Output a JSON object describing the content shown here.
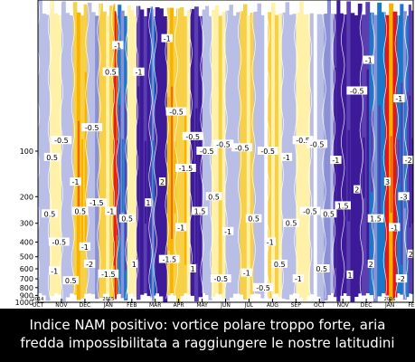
{
  "chart_data": {
    "type": "heatmap",
    "title": "",
    "xlabel": "",
    "ylabel": "",
    "x_axis": {
      "ticks": [
        {
          "label": "OCT",
          "year": "2014"
        },
        {
          "label": "NOV",
          "year": ""
        },
        {
          "label": "DEC",
          "year": ""
        },
        {
          "label": "JAN",
          "year": "2015"
        },
        {
          "label": "FEB",
          "year": ""
        },
        {
          "label": "MAR",
          "year": ""
        },
        {
          "label": "APR",
          "year": ""
        },
        {
          "label": "MAY",
          "year": ""
        },
        {
          "label": "JUN",
          "year": ""
        },
        {
          "label": "JUL",
          "year": ""
        },
        {
          "label": "AUG",
          "year": ""
        },
        {
          "label": "SEP",
          "year": ""
        },
        {
          "label": "OCT",
          "year": ""
        },
        {
          "label": "NOV",
          "year": ""
        },
        {
          "label": "DEC",
          "year": ""
        },
        {
          "label": "JAN",
          "year": "2016"
        },
        {
          "label": "FEB",
          "year": ""
        }
      ]
    },
    "y_axis": {
      "scale": "log",
      "inverted": true,
      "range": [
        10,
        1000
      ],
      "tick_labels": [
        "100",
        "200",
        "300",
        "400",
        "500",
        "600",
        "700",
        "800",
        "900",
        "1000"
      ]
    },
    "contour_levels": [
      -3,
      -2,
      -1.5,
      -1,
      -0.5,
      0.5,
      1,
      1.5,
      2,
      3
    ],
    "colors": {
      "neg_light": "#fff1a8",
      "neg_mid": "#f8d048",
      "neg_strong": "#f7b300",
      "neg_deep": "#ef6a0f",
      "neg_extreme": "#e3161b",
      "pos_light": "#b9bee6",
      "pos_mid": "#8a8fd6",
      "pos_blue": "#1b78c9",
      "pos_strong": "#5b3eb0",
      "pos_extreme": "#3d1a98"
    },
    "bands": [
      {
        "start": 0.0,
        "end": 0.5,
        "value": 0.5
      },
      {
        "start": 0.5,
        "end": 1.0,
        "value": -0.6
      },
      {
        "start": 1.0,
        "end": 1.5,
        "value": 0.4
      },
      {
        "start": 1.5,
        "end": 2.1,
        "value": -1.2
      },
      {
        "start": 2.1,
        "end": 2.6,
        "value": 0.7
      },
      {
        "start": 2.6,
        "end": 3.2,
        "value": -0.8
      },
      {
        "start": 3.2,
        "end": 3.4,
        "value": -2.6
      },
      {
        "start": 3.4,
        "end": 3.8,
        "value": 1.5
      },
      {
        "start": 3.8,
        "end": 4.2,
        "value": -0.6
      },
      {
        "start": 4.2,
        "end": 4.8,
        "value": 2.8
      },
      {
        "start": 4.8,
        "end": 5.0,
        "value": 1.4
      },
      {
        "start": 5.0,
        "end": 5.5,
        "value": 3.0
      },
      {
        "start": 5.5,
        "end": 5.9,
        "value": -1.5
      },
      {
        "start": 5.9,
        "end": 6.5,
        "value": -1.1
      },
      {
        "start": 6.5,
        "end": 7.0,
        "value": 2.6
      },
      {
        "start": 7.0,
        "end": 7.4,
        "value": 0.6
      },
      {
        "start": 7.4,
        "end": 8.0,
        "value": -0.7
      },
      {
        "start": 8.0,
        "end": 8.6,
        "value": 0.5
      },
      {
        "start": 8.6,
        "end": 9.2,
        "value": -0.9
      },
      {
        "start": 9.2,
        "end": 9.8,
        "value": 0.4
      },
      {
        "start": 9.8,
        "end": 10.4,
        "value": -0.7
      },
      {
        "start": 10.4,
        "end": 11.0,
        "value": 0.6
      },
      {
        "start": 11.0,
        "end": 11.6,
        "value": -0.6
      },
      {
        "start": 11.6,
        "end": 12.2,
        "value": 0.4
      },
      {
        "start": 12.2,
        "end": 12.6,
        "value": 0.8
      },
      {
        "start": 12.6,
        "end": 13.0,
        "value": 2.7
      },
      {
        "start": 13.0,
        "end": 13.8,
        "value": 3.0
      },
      {
        "start": 13.8,
        "end": 14.3,
        "value": 2.4
      },
      {
        "start": 14.3,
        "end": 14.8,
        "value": 1.3
      },
      {
        "start": 14.8,
        "end": 15.3,
        "value": -2.8
      },
      {
        "start": 15.3,
        "end": 15.7,
        "value": 1.6
      },
      {
        "start": 15.7,
        "end": 16.0,
        "value": 2.2
      }
    ],
    "contour_labels": [
      {
        "t": 3.4,
        "p": 20,
        "text": "-1"
      },
      {
        "t": 2.3,
        "p": 70,
        "text": "-0.5"
      },
      {
        "t": 1.0,
        "p": 85,
        "text": "-0.5"
      },
      {
        "t": 3.1,
        "p": 30,
        "text": "0.5"
      },
      {
        "t": 4.3,
        "p": 30,
        "text": "-1"
      },
      {
        "t": 5.5,
        "p": 18,
        "text": "-1"
      },
      {
        "t": 5.9,
        "p": 55,
        "text": "-0.5"
      },
      {
        "t": 6.3,
        "p": 130,
        "text": "-1.5"
      },
      {
        "t": 6.6,
        "p": 80,
        "text": "-0.5"
      },
      {
        "t": 7.2,
        "p": 100,
        "text": "-0.5"
      },
      {
        "t": 7.9,
        "p": 90,
        "text": "-0.5"
      },
      {
        "t": 8.7,
        "p": 95,
        "text": "-0.5"
      },
      {
        "t": 9.8,
        "p": 100,
        "text": "-0.5"
      },
      {
        "t": 10.6,
        "p": 110,
        "text": "-1"
      },
      {
        "t": 11.3,
        "p": 85,
        "text": "-0.5"
      },
      {
        "t": 11.9,
        "p": 90,
        "text": "-0.5"
      },
      {
        "t": 12.7,
        "p": 115,
        "text": "-1"
      },
      {
        "t": 13.6,
        "p": 40,
        "text": "-0.5"
      },
      {
        "t": 14.1,
        "p": 25,
        "text": "-1"
      },
      {
        "t": 15.4,
        "p": 45,
        "text": "-1"
      },
      {
        "t": 15.8,
        "p": 115,
        "text": "-2"
      },
      {
        "t": 15.6,
        "p": 200,
        "text": "-3"
      },
      {
        "t": 15.2,
        "p": 320,
        "text": "-1"
      },
      {
        "t": 0.6,
        "p": 110,
        "text": "0.5"
      },
      {
        "t": 0.5,
        "p": 260,
        "text": "0.5"
      },
      {
        "t": 0.9,
        "p": 400,
        "text": "-0.5"
      },
      {
        "t": 1.6,
        "p": 160,
        "text": "-1"
      },
      {
        "t": 1.8,
        "p": 250,
        "text": "0.5"
      },
      {
        "t": 2.0,
        "p": 430,
        "text": "-1"
      },
      {
        "t": 2.5,
        "p": 220,
        "text": "-1.5"
      },
      {
        "t": 3.1,
        "p": 250,
        "text": "-1"
      },
      {
        "t": 3.8,
        "p": 280,
        "text": "0.5"
      },
      {
        "t": 4.7,
        "p": 220,
        "text": "1"
      },
      {
        "t": 5.3,
        "p": 160,
        "text": "2"
      },
      {
        "t": 6.1,
        "p": 320,
        "text": "-1"
      },
      {
        "t": 6.9,
        "p": 250,
        "text": "1.5"
      },
      {
        "t": 7.5,
        "p": 200,
        "text": "0.5"
      },
      {
        "t": 8.1,
        "p": 340,
        "text": "-1"
      },
      {
        "t": 9.2,
        "p": 280,
        "text": "0.5"
      },
      {
        "t": 9.9,
        "p": 400,
        "text": "-1"
      },
      {
        "t": 10.8,
        "p": 300,
        "text": "0.5"
      },
      {
        "t": 11.6,
        "p": 250,
        "text": "-0.5"
      },
      {
        "t": 12.4,
        "p": 260,
        "text": "0.5"
      },
      {
        "t": 13.0,
        "p": 230,
        "text": "1.5"
      },
      {
        "t": 13.6,
        "p": 180,
        "text": "2"
      },
      {
        "t": 14.4,
        "p": 280,
        "text": "1.5"
      },
      {
        "t": 14.9,
        "p": 160,
        "text": "3"
      },
      {
        "t": 15.9,
        "p": 480,
        "text": "2"
      },
      {
        "t": 0.7,
        "p": 620,
        "text": "-1"
      },
      {
        "t": 1.4,
        "p": 720,
        "text": "0.5"
      },
      {
        "t": 2.2,
        "p": 560,
        "text": "-2"
      },
      {
        "t": 3.0,
        "p": 650,
        "text": "-1.5"
      },
      {
        "t": 4.1,
        "p": 560,
        "text": "1"
      },
      {
        "t": 5.6,
        "p": 520,
        "text": "-1.5"
      },
      {
        "t": 6.6,
        "p": 600,
        "text": "1"
      },
      {
        "t": 7.8,
        "p": 700,
        "text": "-0.5"
      },
      {
        "t": 8.9,
        "p": 640,
        "text": "-1"
      },
      {
        "t": 9.6,
        "p": 800,
        "text": "-0.5"
      },
      {
        "t": 10.3,
        "p": 560,
        "text": "0.5"
      },
      {
        "t": 11.1,
        "p": 700,
        "text": "-1"
      },
      {
        "t": 12.1,
        "p": 600,
        "text": "0.5"
      },
      {
        "t": 13.3,
        "p": 660,
        "text": "1"
      },
      {
        "t": 14.2,
        "p": 560,
        "text": "2"
      },
      {
        "t": 15.5,
        "p": 700,
        "text": "-2"
      }
    ]
  },
  "caption": {
    "line1": "Indice NAM positivo: vortice polare troppo forte, aria",
    "line2": "fredda impossibilitata a raggiungere le nostre latitudini"
  }
}
